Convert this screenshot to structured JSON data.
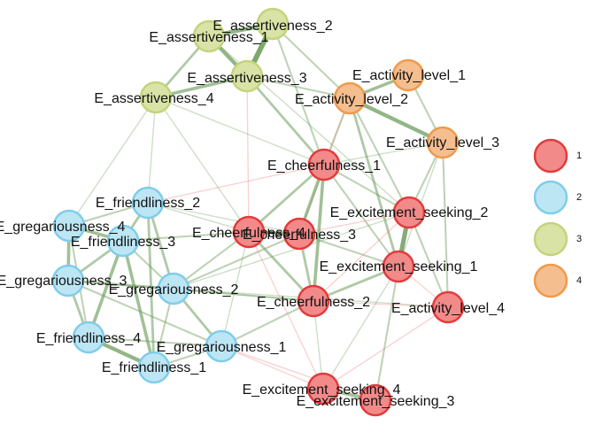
{
  "groups": [
    {
      "id": "1",
      "label": "1",
      "fill": "#F28A8A",
      "stroke": "#E23B3B"
    },
    {
      "id": "2",
      "label": "2",
      "fill": "#BDE6F4",
      "stroke": "#7FCDEB"
    },
    {
      "id": "3",
      "label": "3",
      "fill": "#D9E3A6",
      "stroke": "#C3D47A"
    },
    {
      "id": "4",
      "label": "4",
      "fill": "#F4BE8E",
      "stroke": "#EE9A4E"
    }
  ],
  "edge_colors": {
    "positive": "#6E9E5E",
    "negative": "#F07C7C"
  },
  "nodes": [
    {
      "id": "as1",
      "label": "E_assertiveness_1",
      "group": "3"
    },
    {
      "id": "as2",
      "label": "E_assertiveness_2",
      "group": "3"
    },
    {
      "id": "as3",
      "label": "E_assertiveness_3",
      "group": "3"
    },
    {
      "id": "as4",
      "label": "E_assertiveness_4",
      "group": "3"
    },
    {
      "id": "al1",
      "label": "E_activity_level_1",
      "group": "4"
    },
    {
      "id": "al2",
      "label": "E_activity_level_2",
      "group": "4"
    },
    {
      "id": "al3",
      "label": "E_activity_level_3",
      "group": "4"
    },
    {
      "id": "al4",
      "label": "E_activity_level_4",
      "group": "1"
    },
    {
      "id": "ch1",
      "label": "E_cheerfulness_1",
      "group": "1"
    },
    {
      "id": "ch2",
      "label": "E_cheerfulness_2",
      "group": "1"
    },
    {
      "id": "ch3",
      "label": "E_cheerfulness_3",
      "group": "1"
    },
    {
      "id": "ch4",
      "label": "E_cheerfulness_4",
      "group": "1"
    },
    {
      "id": "es1",
      "label": "E_excitement_seeking_1",
      "group": "1"
    },
    {
      "id": "es2",
      "label": "E_excitement_seeking_2",
      "group": "1"
    },
    {
      "id": "es3",
      "label": "E_excitement_seeking_3",
      "group": "1"
    },
    {
      "id": "es4",
      "label": "E_excitement_seeking_4",
      "group": "1"
    },
    {
      "id": "fr1",
      "label": "E_friendliness_1",
      "group": "2"
    },
    {
      "id": "fr2",
      "label": "E_friendliness_2",
      "group": "2"
    },
    {
      "id": "fr3",
      "label": "E_friendliness_3",
      "group": "2"
    },
    {
      "id": "fr4",
      "label": "E_friendliness_4",
      "group": "2"
    },
    {
      "id": "gr1",
      "label": "E_gregariousness_1",
      "group": "2"
    },
    {
      "id": "gr2",
      "label": "E_gregariousness_2",
      "group": "2"
    },
    {
      "id": "gr3",
      "label": "E_gregariousness_3",
      "group": "2"
    },
    {
      "id": "gr4",
      "label": "E_gregariousness_4",
      "group": "2"
    }
  ],
  "edges": [
    {
      "from": "as1",
      "to": "as2",
      "weight": 5,
      "sign": "positive"
    },
    {
      "from": "as2",
      "to": "as3",
      "weight": 7,
      "sign": "positive"
    },
    {
      "from": "as1",
      "to": "as3",
      "weight": 5,
      "sign": "positive"
    },
    {
      "from": "as3",
      "to": "as4",
      "weight": 4,
      "sign": "positive"
    },
    {
      "from": "as1",
      "to": "as4",
      "weight": 3,
      "sign": "positive"
    },
    {
      "from": "as2",
      "to": "ch1",
      "weight": 2,
      "sign": "positive"
    },
    {
      "from": "as3",
      "to": "ch1",
      "weight": 3,
      "sign": "positive"
    },
    {
      "from": "as3",
      "to": "al2",
      "weight": 2,
      "sign": "positive"
    },
    {
      "from": "as2",
      "to": "al2",
      "weight": 2,
      "sign": "positive"
    },
    {
      "from": "as4",
      "to": "fr2",
      "weight": 1,
      "sign": "positive"
    },
    {
      "from": "as4",
      "to": "ch4",
      "weight": 1,
      "sign": "positive"
    },
    {
      "from": "as3",
      "to": "ch4",
      "weight": 1,
      "sign": "negative"
    },
    {
      "from": "as1",
      "to": "es2",
      "weight": 1,
      "sign": "positive"
    },
    {
      "from": "al1",
      "to": "al2",
      "weight": 4,
      "sign": "positive"
    },
    {
      "from": "al2",
      "to": "al3",
      "weight": 5,
      "sign": "positive"
    },
    {
      "from": "al1",
      "to": "al3",
      "weight": 2,
      "sign": "positive"
    },
    {
      "from": "al2",
      "to": "ch1",
      "weight": 2,
      "sign": "positive"
    },
    {
      "from": "al2",
      "to": "es1",
      "weight": 3,
      "sign": "positive"
    },
    {
      "from": "al2",
      "to": "es2",
      "weight": 2,
      "sign": "positive"
    },
    {
      "from": "al3",
      "to": "al4",
      "weight": 2,
      "sign": "positive"
    },
    {
      "from": "al3",
      "to": "ch1",
      "weight": 1,
      "sign": "positive"
    },
    {
      "from": "al3",
      "to": "es2",
      "weight": 2,
      "sign": "positive"
    },
    {
      "from": "al2",
      "to": "ch3",
      "weight": 1,
      "sign": "negative"
    },
    {
      "from": "ch1",
      "to": "ch2",
      "weight": 4,
      "sign": "positive"
    },
    {
      "from": "ch1",
      "to": "ch3",
      "weight": 4,
      "sign": "positive"
    },
    {
      "from": "ch1",
      "to": "ch4",
      "weight": 3,
      "sign": "positive"
    },
    {
      "from": "ch1",
      "to": "es2",
      "weight": 2,
      "sign": "positive"
    },
    {
      "from": "ch1",
      "to": "es1",
      "weight": 2,
      "sign": "positive"
    },
    {
      "from": "ch2",
      "to": "ch3",
      "weight": 3,
      "sign": "positive"
    },
    {
      "from": "ch2",
      "to": "ch4",
      "weight": 3,
      "sign": "positive"
    },
    {
      "from": "ch3",
      "to": "ch4",
      "weight": 4,
      "sign": "positive"
    },
    {
      "from": "ch2",
      "to": "es1",
      "weight": 3,
      "sign": "positive"
    },
    {
      "from": "ch2",
      "to": "gr1",
      "weight": 2,
      "sign": "positive"
    },
    {
      "from": "ch2",
      "to": "gr2",
      "weight": 2,
      "sign": "positive"
    },
    {
      "from": "ch2",
      "to": "es4",
      "weight": 1,
      "sign": "positive"
    },
    {
      "from": "ch2",
      "to": "al4",
      "weight": 1,
      "sign": "negative"
    },
    {
      "from": "ch3",
      "to": "es1",
      "weight": 2,
      "sign": "positive"
    },
    {
      "from": "ch3",
      "to": "gr2",
      "weight": 2,
      "sign": "positive"
    },
    {
      "from": "ch3",
      "to": "es2",
      "weight": 1,
      "sign": "negative"
    },
    {
      "from": "ch4",
      "to": "gr2",
      "weight": 2,
      "sign": "positive"
    },
    {
      "from": "ch4",
      "to": "fr3",
      "weight": 2,
      "sign": "positive"
    },
    {
      "from": "ch4",
      "to": "gr1",
      "weight": 1,
      "sign": "positive"
    },
    {
      "from": "ch4",
      "to": "es4",
      "weight": 1,
      "sign": "negative"
    },
    {
      "from": "es1",
      "to": "es2",
      "weight": 6,
      "sign": "positive"
    },
    {
      "from": "es1",
      "to": "al4",
      "weight": 1,
      "sign": "negative"
    },
    {
      "from": "es1",
      "to": "es3",
      "weight": 2,
      "sign": "positive"
    },
    {
      "from": "es2",
      "to": "al4",
      "weight": 2,
      "sign": "positive"
    },
    {
      "from": "es3",
      "to": "es4",
      "weight": 4,
      "sign": "positive"
    },
    {
      "from": "es1",
      "to": "es4",
      "weight": 1,
      "sign": "positive"
    },
    {
      "from": "gr1",
      "to": "es4",
      "weight": 1,
      "sign": "negative"
    },
    {
      "from": "al4",
      "to": "es4",
      "weight": 1,
      "sign": "negative"
    },
    {
      "from": "es2",
      "to": "gr2",
      "weight": 1,
      "sign": "positive"
    },
    {
      "from": "es2",
      "to": "ch2",
      "weight": 1,
      "sign": "negative"
    },
    {
      "from": "fr1",
      "to": "fr2",
      "weight": 3,
      "sign": "positive"
    },
    {
      "from": "fr1",
      "to": "fr3",
      "weight": 4,
      "sign": "positive"
    },
    {
      "from": "fr1",
      "to": "fr4",
      "weight": 5,
      "sign": "positive"
    },
    {
      "from": "fr2",
      "to": "fr3",
      "weight": 3,
      "sign": "positive"
    },
    {
      "from": "fr3",
      "to": "fr4",
      "weight": 4,
      "sign": "positive"
    },
    {
      "from": "fr2",
      "to": "gr2",
      "weight": 3,
      "sign": "positive"
    },
    {
      "from": "fr2",
      "to": "gr4",
      "weight": 2,
      "sign": "positive"
    },
    {
      "from": "fr3",
      "to": "gr4",
      "weight": 4,
      "sign": "positive"
    },
    {
      "from": "fr3",
      "to": "gr3",
      "weight": 3,
      "sign": "positive"
    },
    {
      "from": "fr3",
      "to": "gr2",
      "weight": 2,
      "sign": "positive"
    },
    {
      "from": "gr1",
      "to": "gr2",
      "weight": 3,
      "sign": "positive"
    },
    {
      "from": "gr2",
      "to": "gr3",
      "weight": 3,
      "sign": "positive"
    },
    {
      "from": "gr3",
      "to": "gr4",
      "weight": 4,
      "sign": "positive"
    },
    {
      "from": "gr1",
      "to": "fr4",
      "weight": 2,
      "sign": "positive"
    },
    {
      "from": "gr1",
      "to": "fr1",
      "weight": 2,
      "sign": "positive"
    },
    {
      "from": "gr3",
      "to": "fr4",
      "weight": 3,
      "sign": "positive"
    },
    {
      "from": "gr4",
      "to": "fr4",
      "weight": 2,
      "sign": "positive"
    },
    {
      "from": "gr2",
      "to": "fr1",
      "weight": 2,
      "sign": "positive"
    },
    {
      "from": "gr1",
      "to": "gr3",
      "weight": 2,
      "sign": "positive"
    },
    {
      "from": "fr2",
      "to": "ch4",
      "weight": 1,
      "sign": "positive"
    },
    {
      "from": "fr2",
      "to": "ch3",
      "weight": 1,
      "sign": "positive"
    },
    {
      "from": "gr2",
      "to": "al4",
      "weight": 1,
      "sign": "positive"
    },
    {
      "from": "as4",
      "to": "gr4",
      "weight": 1,
      "sign": "positive"
    },
    {
      "from": "fr2",
      "to": "ch1",
      "weight": 1,
      "sign": "negative"
    },
    {
      "from": "gr1",
      "to": "es3",
      "weight": 1,
      "sign": "negative"
    },
    {
      "from": "gr3",
      "to": "ch2",
      "weight": 1,
      "sign": "positive"
    },
    {
      "from": "al3",
      "to": "es1",
      "weight": 1,
      "sign": "positive"
    },
    {
      "from": "as4",
      "to": "ch1",
      "weight": 1,
      "sign": "positive"
    }
  ]
}
